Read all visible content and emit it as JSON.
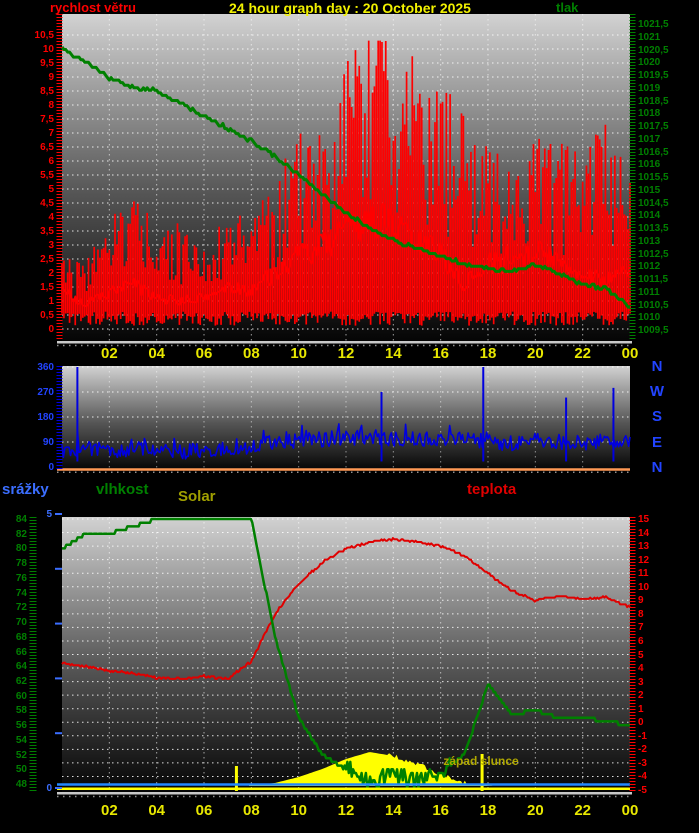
{
  "header": {
    "left_label": "rychlost větru",
    "title": "24 hour graph day : 20 October 2025",
    "right_label": "tlak"
  },
  "section_labels": {
    "precip": "srážky",
    "humidity": "vlhkost",
    "solar": "Solar",
    "temperature": "teplota"
  },
  "annotations": {
    "sunset": "západ slunce"
  },
  "colors": {
    "title": "#f2f200",
    "wind": "#ff0000",
    "pressure": "#008000",
    "direction": "#0000e0",
    "direction_label": "#2244ff",
    "precip_label": "#3b6eff",
    "precip_line": "#2288ff",
    "humidity": "#008000",
    "solar_label": "#a0a000",
    "solar_fill": "#ffff00",
    "temperature": "#e00000",
    "hour_labels": "#e8e800",
    "grid": "#ffffff",
    "plot_gradient_top": "#d2d2d2",
    "plot_gradient_mid": "#555555",
    "plot_gradient_bottom": "#050505",
    "orange_baseline": "#ff9955",
    "sun_marker": "#ffff00"
  },
  "axes": {
    "hours": [
      "02",
      "04",
      "06",
      "08",
      "10",
      "12",
      "14",
      "16",
      "18",
      "20",
      "22",
      "00"
    ],
    "wind_ticks": [
      "10,5",
      "10",
      "9,5",
      "9",
      "8,5",
      "8",
      "7,5",
      "7",
      "6,5",
      "6",
      "5,5",
      "5",
      "4,5",
      "4",
      "3,5",
      "3",
      "2,5",
      "2",
      "1,5",
      "1",
      "0,5",
      "0"
    ],
    "pressure_ticks": [
      "1021,5",
      "1021",
      "1020,5",
      "1020",
      "1019,5",
      "1019",
      "1018,5",
      "1018",
      "1017,5",
      "1017",
      "1016,5",
      "1016",
      "1015,5",
      "1015",
      "1014,5",
      "1014",
      "1013,5",
      "1013",
      "1012,5",
      "1012",
      "1011,5",
      "1011",
      "1010,5",
      "1010",
      "1009,5"
    ],
    "direction_ticks": [
      "360",
      "270",
      "180",
      "90",
      "0"
    ],
    "direction_letters": [
      "N",
      "W",
      "S",
      "E",
      "N"
    ],
    "humidity_ticks": [
      "84",
      "82",
      "80",
      "78",
      "76",
      "74",
      "72",
      "70",
      "68",
      "66",
      "64",
      "62",
      "60",
      "58",
      "56",
      "54",
      "52",
      "50",
      "48"
    ],
    "precip_ticks": [
      "5",
      "0"
    ],
    "temperature_ticks": [
      "15",
      "14",
      "13",
      "12",
      "11",
      "10",
      "9",
      "8",
      "7",
      "6",
      "5",
      "4",
      "3",
      "2",
      "1",
      "0",
      "-1",
      "-2",
      "-3",
      "-4",
      "-5"
    ]
  },
  "chart_data": [
    {
      "id": "wind-and-pressure",
      "type": "line",
      "x_hours": [
        0,
        1,
        2,
        3,
        4,
        5,
        6,
        7,
        8,
        9,
        10,
        11,
        12,
        13,
        14,
        15,
        16,
        17,
        18,
        19,
        20,
        21,
        22,
        23,
        24
      ],
      "ylim_left_wind": [
        0,
        10.5
      ],
      "ylim_right_pressure": [
        1009.5,
        1021.5
      ],
      "series": [
        {
          "name": "wind-gust",
          "color": "#ff0000",
          "style": "spike-bars",
          "values": [
            2.6,
            2.2,
            3.2,
            4.2,
            3.0,
            3.2,
            2.8,
            3.6,
            3.4,
            4.5,
            6.5,
            6.0,
            8.5,
            10.2,
            9.2,
            8.0,
            7.2,
            6.8,
            5.5,
            5.0,
            6.2,
            5.5,
            5.8,
            6.3,
            6.0
          ]
        },
        {
          "name": "wind-average",
          "color": "#ff0000",
          "style": "line",
          "values": [
            1.4,
            0.9,
            1.3,
            1.6,
            1.1,
            1.0,
            1.1,
            1.5,
            1.4,
            2.0,
            2.6,
            2.9,
            3.4,
            4.0,
            3.7,
            3.1,
            2.7,
            1.6,
            2.3,
            2.6,
            2.8,
            2.4,
            2.0,
            1.8,
            2.1
          ]
        },
        {
          "name": "pressure",
          "color": "#008000",
          "style": "line",
          "values": [
            1020.5,
            1020.0,
            1019.4,
            1019.0,
            1018.9,
            1018.4,
            1017.9,
            1017.4,
            1016.9,
            1016.3,
            1015.6,
            1014.8,
            1014.1,
            1013.5,
            1013.0,
            1012.7,
            1012.4,
            1012.1,
            1011.9,
            1011.8,
            1012.1,
            1011.7,
            1011.3,
            1011.1,
            1010.4
          ]
        }
      ]
    },
    {
      "id": "wind-direction",
      "type": "line",
      "x_hours": [
        0,
        1,
        2,
        3,
        4,
        5,
        6,
        7,
        8,
        9,
        10,
        11,
        12,
        13,
        14,
        15,
        16,
        17,
        18,
        19,
        20,
        21,
        22,
        23,
        24
      ],
      "ylim": [
        0,
        360
      ],
      "series": [
        {
          "name": "direction-degrees",
          "color": "#0000e0",
          "style": "noisy-line",
          "values": [
            60,
            70,
            55,
            65,
            60,
            55,
            60,
            65,
            70,
            90,
            95,
            100,
            105,
            110,
            100,
            105,
            95,
            100,
            90,
            85,
            95,
            90,
            85,
            95,
            100
          ]
        }
      ],
      "spikes": [
        {
          "hour": 0.65,
          "value": 360
        },
        {
          "hour": 13.5,
          "value": 270
        },
        {
          "hour": 17.8,
          "value": 360
        },
        {
          "hour": 21.3,
          "value": 250
        },
        {
          "hour": 23.3,
          "value": 285
        }
      ]
    },
    {
      "id": "humidity-solar-temperature-precip",
      "type": "line",
      "x_hours": [
        0,
        1,
        2,
        3,
        4,
        5,
        6,
        7,
        8,
        9,
        10,
        11,
        12,
        13,
        14,
        15,
        16,
        17,
        18,
        19,
        20,
        21,
        22,
        23,
        24
      ],
      "ylim_humidity": [
        48,
        84
      ],
      "ylim_temperature": [
        -5,
        15
      ],
      "ylim_precip": [
        0,
        5
      ],
      "series": [
        {
          "name": "humidity",
          "color": "#008000",
          "style": "line",
          "values": [
            80,
            82,
            82,
            83,
            84,
            84,
            84,
            84,
            84,
            68,
            57,
            52,
            50,
            48.5,
            49,
            48.5,
            49.5,
            52,
            61.5,
            57.5,
            58,
            57,
            57,
            56.5,
            56
          ]
        },
        {
          "name": "temperature",
          "color": "#e00000",
          "style": "line",
          "values": [
            4.4,
            4.1,
            3.8,
            3.6,
            3.3,
            3.2,
            3.4,
            3.2,
            4.5,
            8.0,
            10.2,
            11.8,
            12.8,
            13.3,
            13.5,
            13.3,
            13.0,
            12.3,
            11.0,
            9.7,
            9.0,
            9.3,
            9.1,
            9.2,
            8.5
          ]
        },
        {
          "name": "solar-relative",
          "color": "#ffff00",
          "style": "area",
          "values": [
            0,
            0,
            0,
            0,
            0,
            0,
            0,
            0,
            0.5,
            3,
            9,
            17,
            27,
            34,
            30,
            22,
            12,
            3,
            0.3,
            0,
            0,
            0,
            0,
            0,
            0
          ]
        },
        {
          "name": "precipitation",
          "color": "#2288ff",
          "style": "line",
          "values": [
            0,
            0,
            0,
            0,
            0,
            0,
            0,
            0,
            0,
            0,
            0,
            0,
            0,
            0,
            0,
            0,
            0,
            0,
            0,
            0,
            0,
            0,
            0,
            0,
            0
          ]
        }
      ],
      "sun_markers": {
        "sunrise_hour": 7.37,
        "sunset_hour": 17.75
      }
    }
  ]
}
